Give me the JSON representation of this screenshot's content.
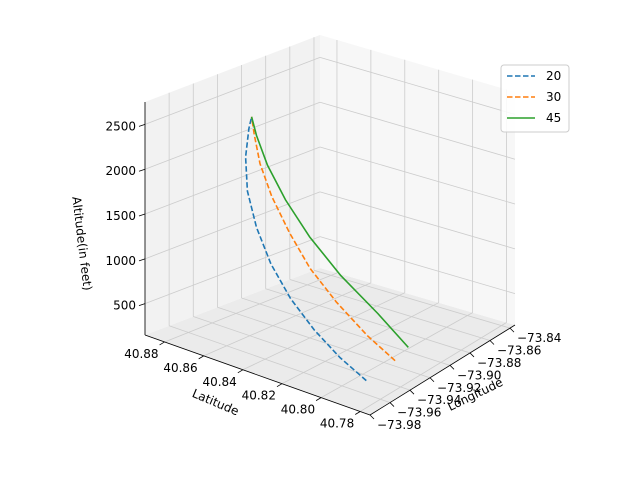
{
  "chart_data": {
    "type": "line",
    "projection": "3d",
    "title": "",
    "xlabel": "Longitude",
    "ylabel": "Latitude",
    "zlabel": "Altitude(in feet)",
    "x_ticks": [
      "−73.98",
      "−73.96",
      "−73.94",
      "−73.92",
      "−73.90",
      "−73.88",
      "−73.86",
      "−73.84"
    ],
    "y_ticks": [
      "40.78",
      "40.80",
      "40.82",
      "40.84",
      "40.86",
      "40.88"
    ],
    "z_ticks": [
      "500",
      "1000",
      "1500",
      "2000",
      "2500"
    ],
    "xlim": [
      -73.98,
      -73.835
    ],
    "ylim": [
      40.775,
      40.89
    ],
    "zlim": [
      150,
      2750
    ],
    "grid": true,
    "legend_position": "upper right",
    "series": [
      {
        "name": "20",
        "color": "#1f77b4",
        "style": "dashed",
        "points": [
          [
            -73.955,
            40.79,
            250
          ],
          [
            -73.962,
            40.8,
            480
          ],
          [
            -73.968,
            40.81,
            750
          ],
          [
            -73.972,
            40.82,
            1050
          ],
          [
            -73.974,
            40.829,
            1380
          ],
          [
            -73.973,
            40.837,
            1720
          ],
          [
            -73.969,
            40.844,
            2050
          ],
          [
            -73.962,
            40.849,
            2350
          ],
          [
            -73.954,
            40.852,
            2600
          ],
          [
            -73.95,
            40.853,
            2700
          ]
        ]
      },
      {
        "name": "30",
        "color": "#ff7f0e",
        "style": "dashed",
        "points": [
          [
            -73.918,
            40.795,
            190
          ],
          [
            -73.925,
            40.806,
            440
          ],
          [
            -73.933,
            40.818,
            780
          ],
          [
            -73.94,
            40.828,
            1130
          ],
          [
            -73.945,
            40.836,
            1500
          ],
          [
            -73.949,
            40.843,
            1880
          ],
          [
            -73.951,
            40.848,
            2220
          ],
          [
            -73.951,
            40.851,
            2520
          ],
          [
            -73.95,
            40.853,
            2700
          ]
        ]
      },
      {
        "name": "45",
        "color": "#2ca02c",
        "style": "solid",
        "points": [
          [
            -73.9,
            40.798,
            200
          ],
          [
            -73.91,
            40.809,
            570
          ],
          [
            -73.922,
            40.822,
            980
          ],
          [
            -73.932,
            40.833,
            1400
          ],
          [
            -73.94,
            40.841,
            1800
          ],
          [
            -73.946,
            40.847,
            2180
          ],
          [
            -73.949,
            40.851,
            2500
          ],
          [
            -73.95,
            40.853,
            2700
          ]
        ]
      }
    ]
  },
  "colors": {
    "pane_floor": "#ebebeb",
    "pane_back": "#f2f2f2",
    "pane_left": "#f7f7f7",
    "grid": "#cccccc",
    "edge": "#000000"
  }
}
